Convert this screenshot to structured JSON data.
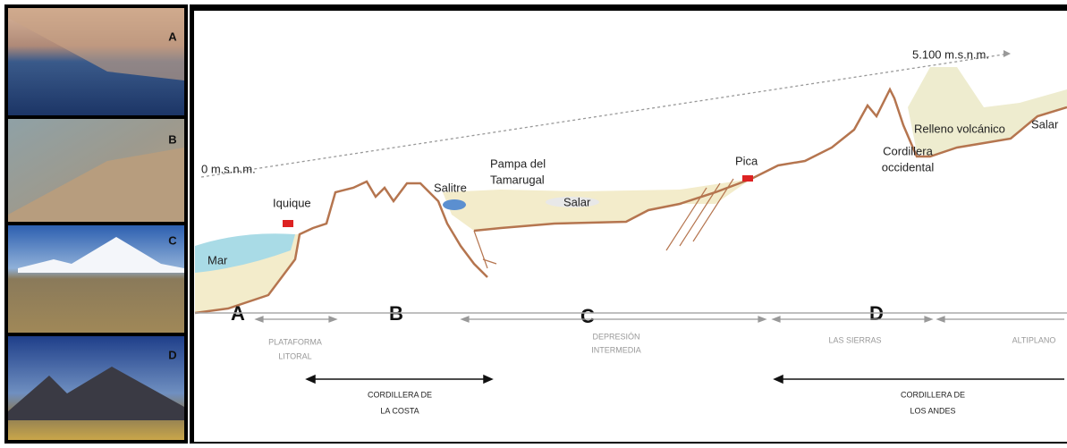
{
  "photos": {
    "labels": [
      "A",
      "B",
      "C",
      "D"
    ]
  },
  "profile": {
    "top_elevation": "5.100 m.s.n.m.",
    "base_elevation": "0 m.s.n.m.",
    "iquique": "Iquique",
    "salitre": "Salitre",
    "pampa": [
      "Pampa del",
      "Tamarugal"
    ],
    "salar_pampa": "Salar",
    "pica": "Pica",
    "cordillera_occidental": [
      "Cordillera",
      "occidental"
    ],
    "relleno": "Relleno volcánico",
    "salar_altiplano": "Salar",
    "mar": "Mar",
    "zones": [
      "A",
      "B",
      "C",
      "D"
    ]
  },
  "units": {
    "plataforma": [
      "PLATAFORMA",
      "LITORAL"
    ],
    "depresion": [
      "DEPRESIÓN",
      "INTERMEDIA"
    ],
    "sierras": "LAS SIERRAS",
    "altiplano": "ALTIPLANO",
    "costa": [
      "CORDILLERA DE",
      "LA COSTA"
    ],
    "andes": [
      "CORDILLERA DE",
      "LOS ANDES"
    ]
  }
}
